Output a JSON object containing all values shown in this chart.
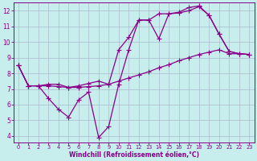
{
  "xlabel": "Windchill (Refroidissement éolien,°C)",
  "bg_color": "#c8eded",
  "line_color": "#880088",
  "grid_color": "#aabbcc",
  "xlim_min": -0.5,
  "xlim_max": 23.5,
  "ylim_min": 3.6,
  "ylim_max": 12.5,
  "xticks": [
    0,
    1,
    2,
    3,
    4,
    5,
    6,
    7,
    8,
    9,
    10,
    11,
    12,
    13,
    14,
    15,
    16,
    17,
    18,
    19,
    20,
    21,
    22,
    23
  ],
  "yticks": [
    4,
    5,
    6,
    7,
    8,
    9,
    10,
    11,
    12
  ],
  "line1_x": [
    0,
    1,
    2,
    3,
    4,
    5,
    6,
    7,
    8,
    9,
    10,
    11,
    12,
    13,
    14,
    15,
    16,
    17,
    18,
    19,
    20,
    21,
    22,
    23
  ],
  "line1_y": [
    8.5,
    7.2,
    7.2,
    6.4,
    5.7,
    5.2,
    6.3,
    6.8,
    3.9,
    4.6,
    7.3,
    9.5,
    11.4,
    11.4,
    11.8,
    11.8,
    11.85,
    12.0,
    12.25,
    11.7,
    10.5,
    9.4,
    9.25,
    9.2
  ],
  "line2_x": [
    0,
    1,
    2,
    3,
    4,
    5,
    6,
    7,
    8,
    9,
    10,
    11,
    12,
    13,
    14,
    15,
    16,
    17,
    18,
    19,
    20,
    21,
    22,
    23
  ],
  "line2_y": [
    8.5,
    7.2,
    7.2,
    7.2,
    7.15,
    7.1,
    7.1,
    7.15,
    7.2,
    7.3,
    7.5,
    7.7,
    7.9,
    8.1,
    8.35,
    8.55,
    8.8,
    9.0,
    9.2,
    9.35,
    9.5,
    9.25,
    9.25,
    9.2
  ],
  "line3_x": [
    0,
    1,
    2,
    3,
    4,
    5,
    6,
    7,
    8,
    9,
    10,
    11,
    12,
    13,
    14,
    15,
    16,
    17,
    18,
    19,
    20,
    21,
    22,
    23
  ],
  "line3_y": [
    8.5,
    7.2,
    7.2,
    7.3,
    7.3,
    7.1,
    7.2,
    7.35,
    7.5,
    7.3,
    9.5,
    10.3,
    11.4,
    11.4,
    10.2,
    11.8,
    11.9,
    12.2,
    12.3,
    11.7,
    10.5,
    9.4,
    9.25,
    9.2
  ]
}
